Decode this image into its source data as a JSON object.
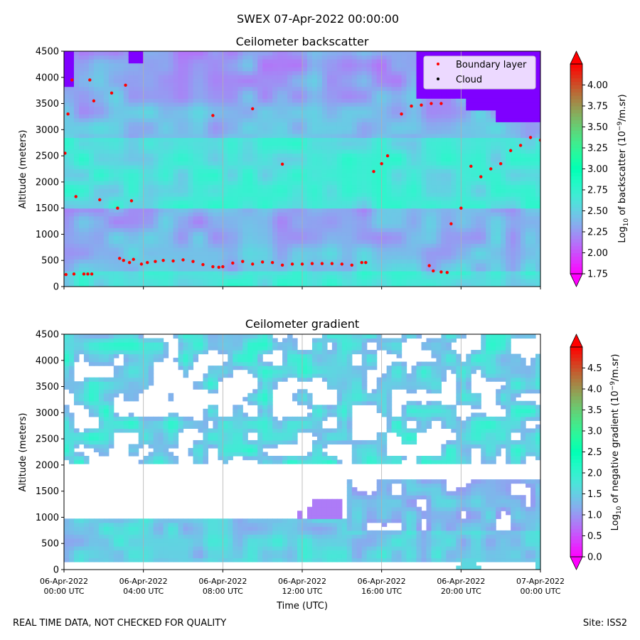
{
  "figure": {
    "suptitle": "SWEX 07-Apr-2022 00:00:00",
    "footer_left": "REAL TIME DATA, NOT CHECKED FOR QUALITY",
    "footer_right": "Site: ISS2"
  },
  "chart_data": [
    {
      "type": "heatmap",
      "title": "Ceilometer backscatter",
      "ylabel": "Altitude (meters)",
      "ylim": [
        0,
        4500
      ],
      "yticks": [
        0,
        500,
        1000,
        1500,
        2000,
        2500,
        3000,
        3500,
        4000,
        4500
      ],
      "xlim_hours": [
        0,
        24
      ],
      "x_ticks_hours": [
        0,
        4,
        8,
        12,
        16,
        20,
        24
      ],
      "grid": "vertical lines at x ticks",
      "legend": {
        "placement": "upper right",
        "entries": [
          {
            "label": "Boundary layer",
            "color": "#ff0000"
          },
          {
            "label": "Cloud",
            "color": "#000000"
          }
        ]
      },
      "colorbar": {
        "label": "Log10 of backscatter (10^-9/m.sr)",
        "label_parts": {
          "pre": "Log",
          "sub": "10",
          "mid": " of backscatter (10",
          "sup": "−9",
          "post": "/m.sr)"
        },
        "colormap": "rainbow",
        "vmin": 1.75,
        "vmax": 4.25,
        "ticks": [
          "1.75",
          "2.00",
          "2.25",
          "2.50",
          "2.75",
          "3.00",
          "3.25",
          "3.50",
          "3.75",
          "4.00"
        ],
        "extend": "both"
      },
      "field_description": "values mostly 2.25–2.75; higher (~2.6–2.7) near 2500 m and low levels, lower (~2.1–2.4) in 500–1500 m band and 3500–4500 m; purple (<1.75) above ~3200 m after 20:00",
      "boundary_layer_series": {
        "name": "Boundary layer",
        "x_hours": [
          0.1,
          0.5,
          1.0,
          1.2,
          1.4,
          2.8,
          3.0,
          3.3,
          3.5,
          3.9,
          4.2,
          4.6,
          5.0,
          5.5,
          6.0,
          6.5,
          7.0,
          7.5,
          7.8,
          8.0,
          8.5,
          9.0,
          9.5,
          10.0,
          10.5,
          11.0,
          11.5,
          12.0,
          12.5,
          13.0,
          13.5,
          14.0,
          14.5,
          15.0,
          15.2,
          18.4,
          18.6,
          19.0,
          19.3
        ],
        "y_m": [
          230,
          240,
          240,
          240,
          240,
          540,
          500,
          460,
          520,
          430,
          460,
          480,
          500,
          490,
          510,
          480,
          420,
          380,
          370,
          380,
          450,
          480,
          430,
          470,
          460,
          410,
          430,
          430,
          440,
          440,
          440,
          430,
          410,
          460,
          460,
          400,
          300,
          280,
          270
        ]
      },
      "boundary_layer_upper_series": {
        "name": "Boundary layer",
        "x_hours": [
          0.05,
          0.2,
          0.4,
          0.6,
          1.3,
          1.5,
          1.8,
          2.4,
          2.7,
          3.1,
          3.4,
          7.5,
          9.5,
          11.0,
          15.6,
          16.0,
          16.3,
          17.0,
          17.5,
          18.0,
          18.5,
          19.0,
          19.5,
          20.0,
          20.5,
          21.0,
          21.5,
          22.0,
          22.5,
          23.0,
          23.5,
          24.0
        ],
        "y_m": [
          2550,
          3300,
          3950,
          1720,
          3950,
          3550,
          1660,
          3700,
          1500,
          3850,
          1640,
          3270,
          3400,
          2340,
          2200,
          2350,
          2500,
          3300,
          3450,
          3470,
          3500,
          3500,
          1200,
          1500,
          2300,
          2100,
          2250,
          2350,
          2600,
          2700,
          2850,
          2800
        ]
      },
      "cloud_series": {
        "name": "Cloud",
        "x_hours": [],
        "y_m": []
      }
    },
    {
      "type": "heatmap",
      "title": "Ceilometer gradient",
      "xlabel": "Time (UTC)",
      "ylabel": "Altitude (meters)",
      "ylim": [
        0,
        4500
      ],
      "yticks": [
        0,
        500,
        1000,
        1500,
        2000,
        2500,
        3000,
        3500,
        4000,
        4500
      ],
      "xlim_hours": [
        0,
        24
      ],
      "x_ticks_hours": [
        0,
        4,
        8,
        12,
        16,
        20,
        24
      ],
      "x_tick_labels": [
        [
          "06-Apr-2022",
          "00:00 UTC"
        ],
        [
          "06-Apr-2022",
          "04:00 UTC"
        ],
        [
          "06-Apr-2022",
          "08:00 UTC"
        ],
        [
          "06-Apr-2022",
          "12:00 UTC"
        ],
        [
          "06-Apr-2022",
          "16:00 UTC"
        ],
        [
          "06-Apr-2022",
          "20:00 UTC"
        ],
        [
          "07-Apr-2022",
          "00:00 UTC"
        ]
      ],
      "grid": "vertical lines at x ticks",
      "colorbar": {
        "label": "Log10 of negative gradient (10^-9/m.sr)",
        "label_parts": {
          "pre": "Log",
          "sub": "10",
          "mid": " of negative gradient (10",
          "sup": "−9",
          "post": "/m.sr)"
        },
        "colormap": "rainbow",
        "vmin": 0.0,
        "vmax": 5.0,
        "ticks": [
          "0.0",
          "0.5",
          "1.0",
          "1.5",
          "2.0",
          "2.5",
          "3.0",
          "3.5",
          "4.0",
          "4.5"
        ],
        "extend": "both"
      },
      "field_description": "low-level band 150–1000 m values ~1.3–2.0; white (no data) gap between ~900 m and ~2000 m early in the day; patchy values ~0.8–2.0 above 2000 m; second band 600–1700 m after 14:00"
    }
  ]
}
